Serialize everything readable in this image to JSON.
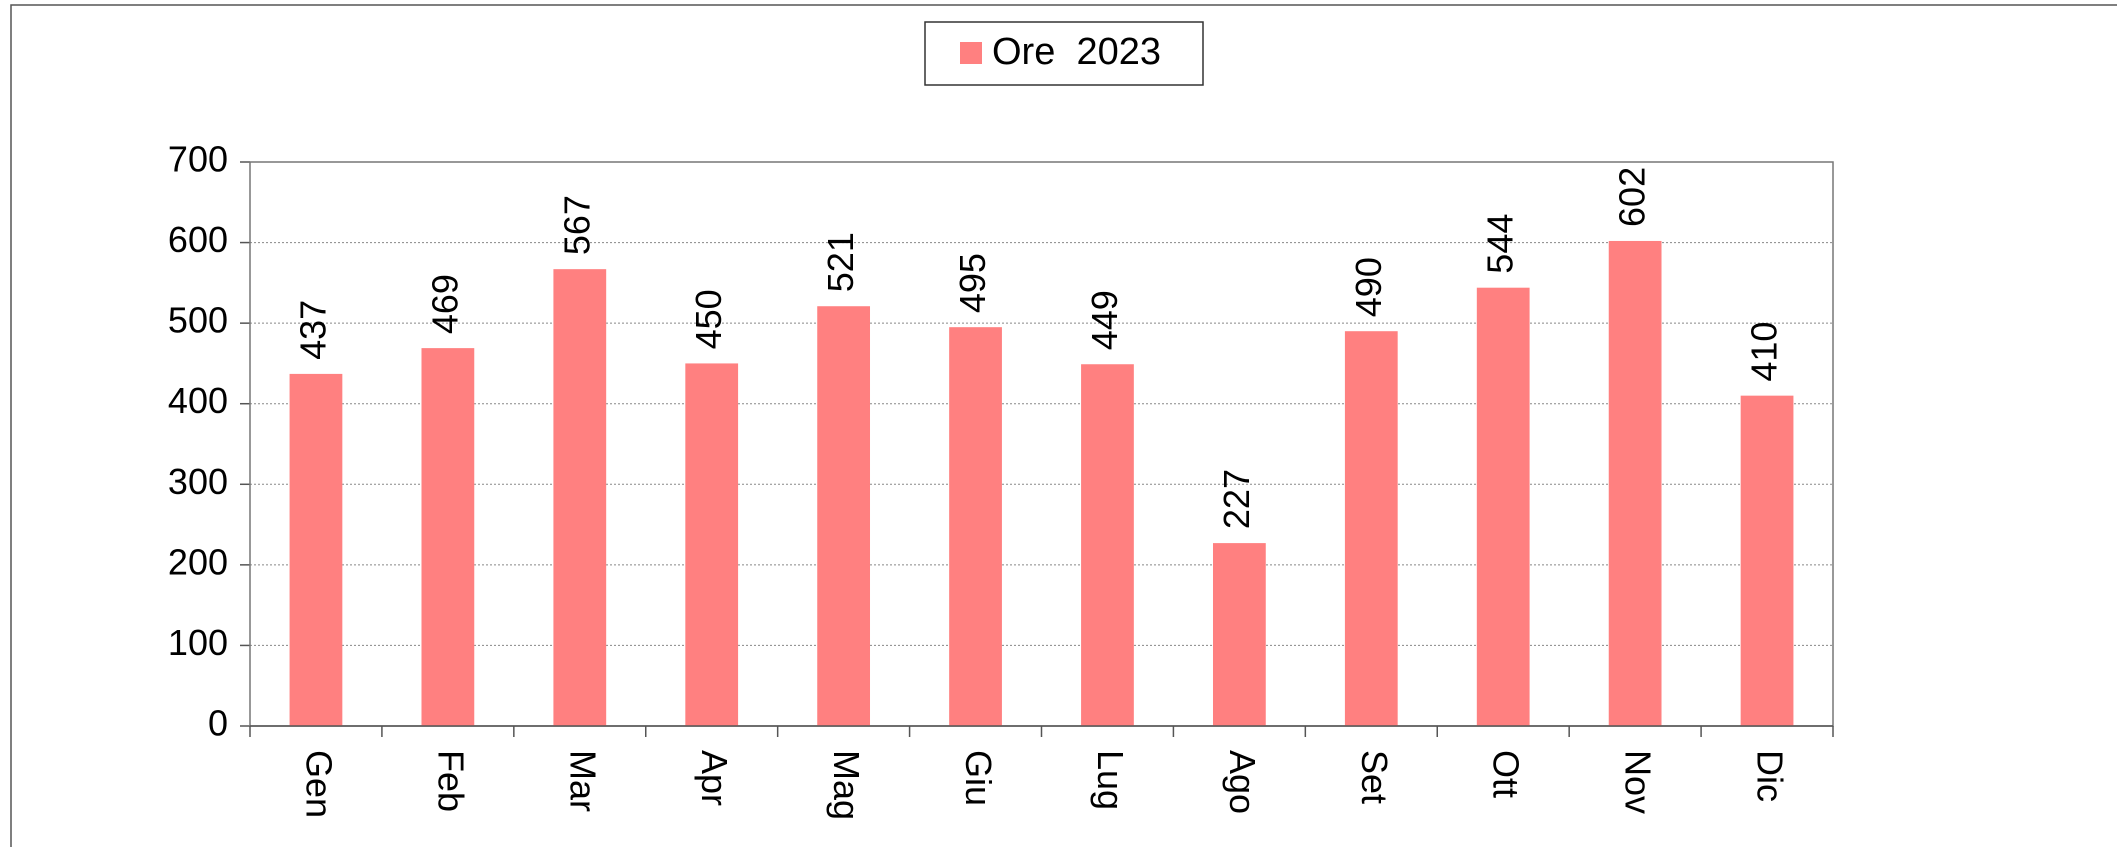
{
  "chart_data": {
    "type": "bar",
    "categories": [
      "Gen",
      "Feb",
      "Mar",
      "Apr",
      "Mag",
      "Giu",
      "Lug",
      "Ago",
      "Set",
      "Ott",
      "Nov",
      "Dic"
    ],
    "series": [
      {
        "name": "Ore  2023",
        "color": "#ff8080",
        "values": [
          437,
          469,
          567,
          450,
          521,
          495,
          449,
          227,
          490,
          544,
          602,
          410
        ]
      }
    ],
    "ylim": [
      0,
      700
    ],
    "yticks": [
      0,
      100,
      200,
      300,
      400,
      500,
      600,
      700
    ],
    "grid": true,
    "legend": "top"
  }
}
